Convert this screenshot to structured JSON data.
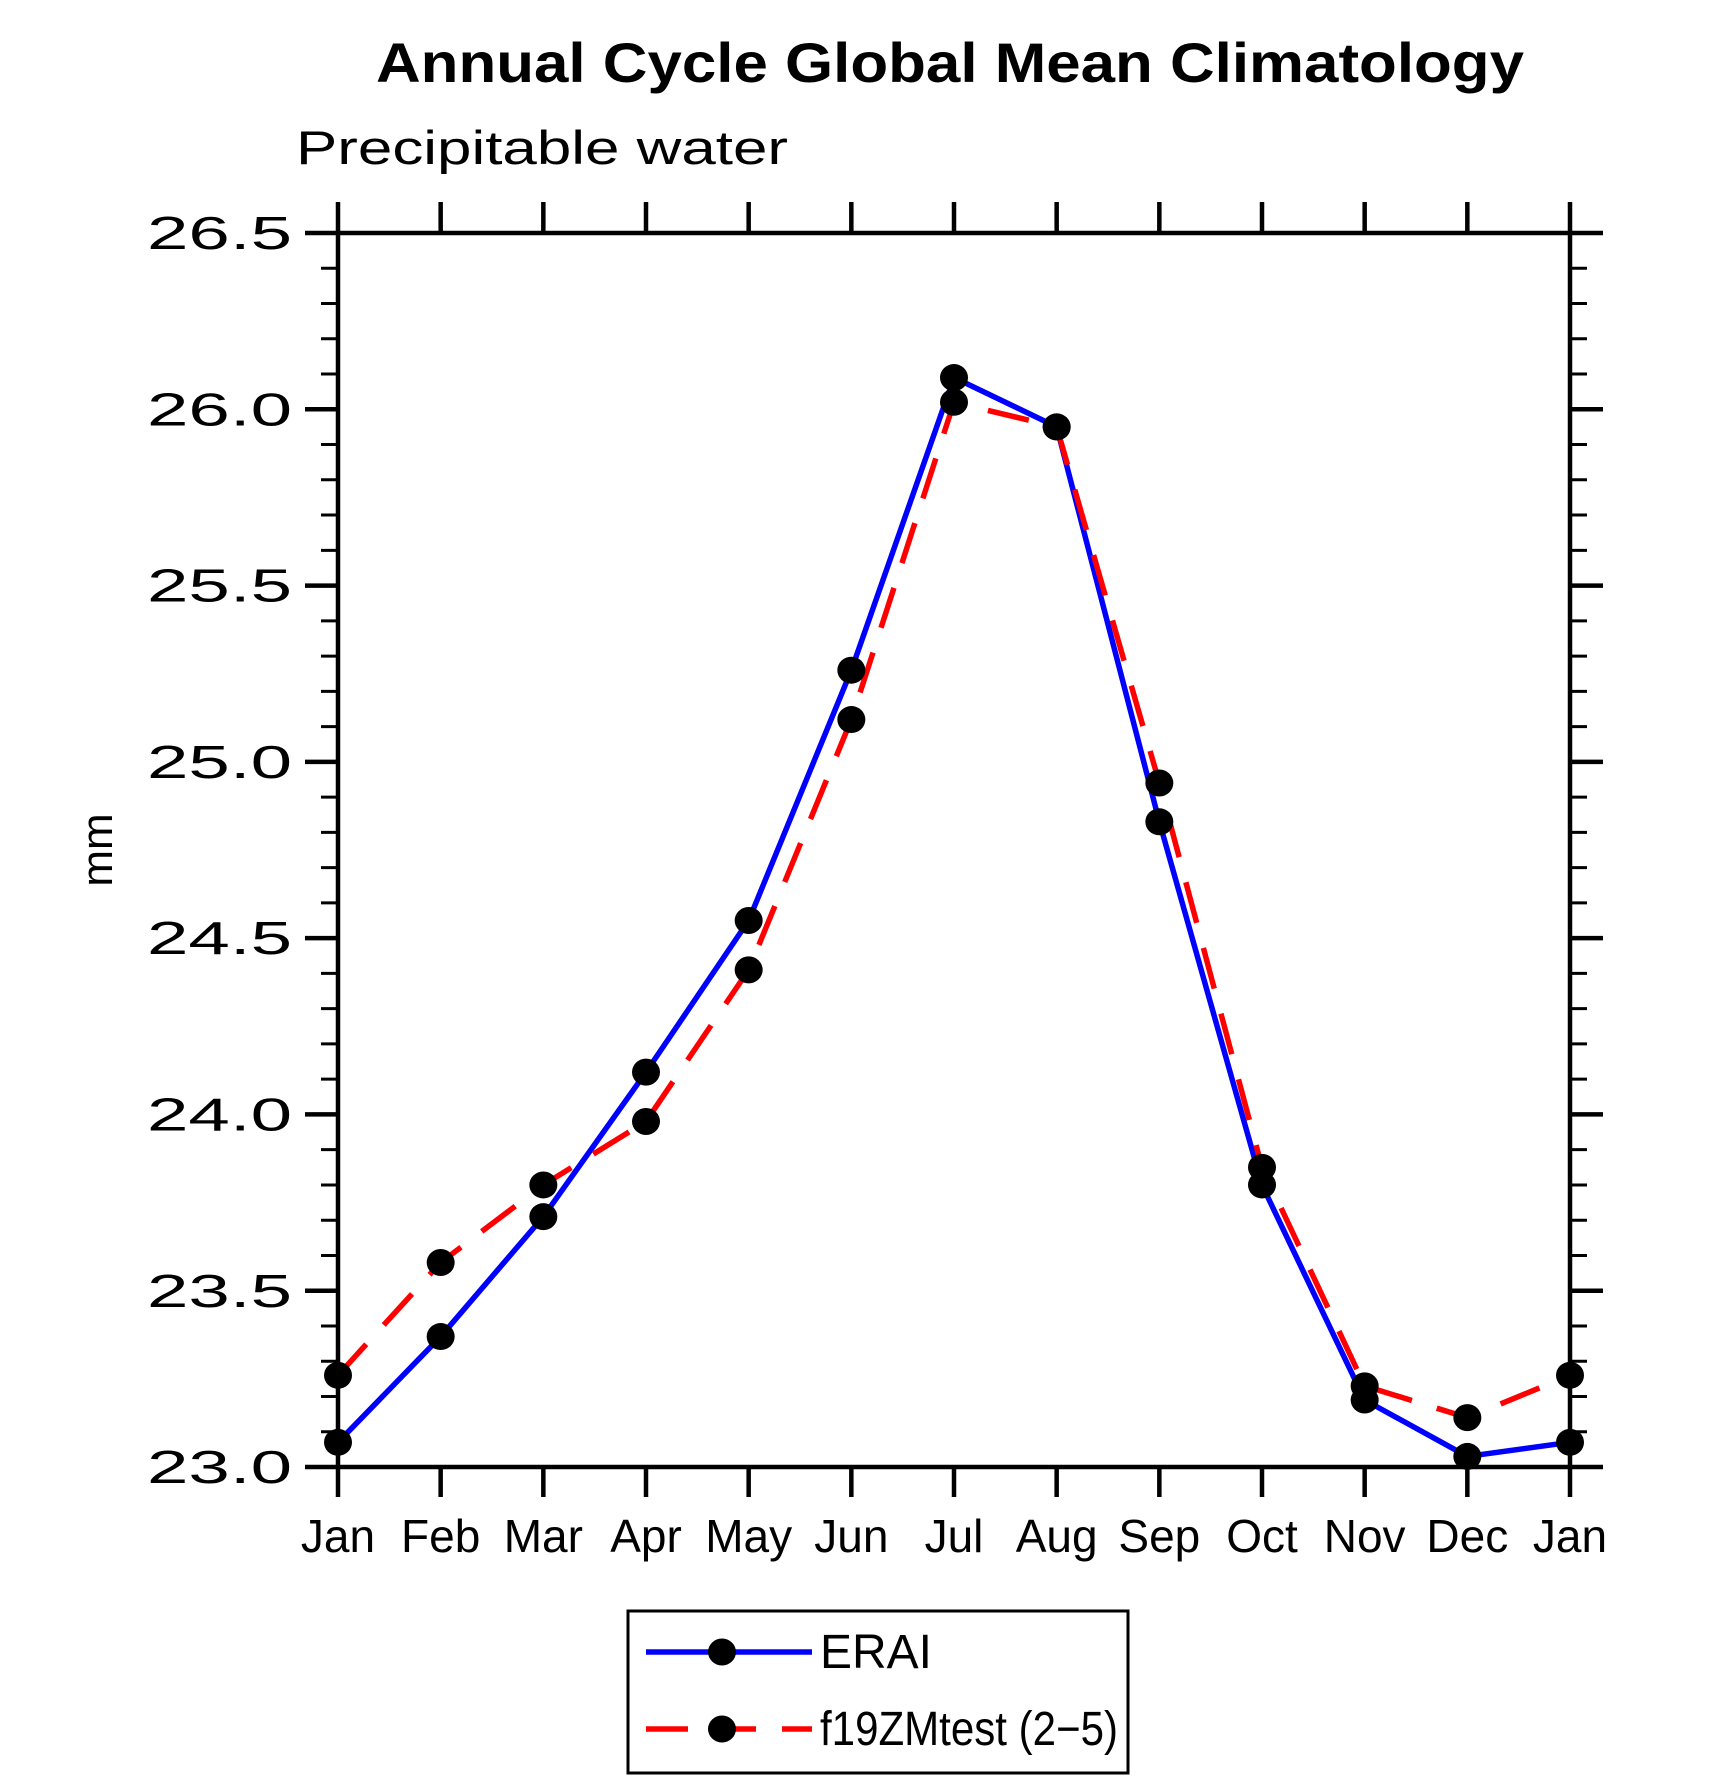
{
  "chart_data": {
    "type": "line",
    "title": "Annual Cycle Global Mean Climatology",
    "subtitle": "Precipitable water",
    "ylabel": "mm",
    "xlabel": "",
    "x_categories": [
      "Jan",
      "Feb",
      "Mar",
      "Apr",
      "May",
      "Jun",
      "Jul",
      "Aug",
      "Sep",
      "Oct",
      "Nov",
      "Dec",
      "Jan"
    ],
    "ylim": [
      23.0,
      26.5
    ],
    "ytick_major_step": 0.5,
    "ytick_minor_step": 0.1,
    "ytick_labels": [
      "23.0",
      "23.5",
      "24.0",
      "24.5",
      "25.0",
      "25.5",
      "26.0",
      "26.5"
    ],
    "grid": "off",
    "legend_position": "bottom-center",
    "series": [
      {
        "name": "ERAI",
        "color": "#0000ff",
        "line_style": "solid",
        "marker": "black-filled-circle",
        "values": [
          23.07,
          23.37,
          23.71,
          24.12,
          24.55,
          25.26,
          26.09,
          25.95,
          24.83,
          23.8,
          23.19,
          23.03,
          23.07
        ]
      },
      {
        "name": "f19ZMtest (2−5)",
        "color": "#ff0000",
        "line_style": "dashed",
        "marker": "black-filled-circle",
        "values": [
          23.26,
          23.58,
          23.8,
          23.98,
          24.41,
          25.12,
          26.02,
          25.95,
          24.94,
          23.85,
          23.23,
          23.14,
          23.26
        ]
      }
    ],
    "marker_color": "#000000",
    "axis_color": "#000000"
  }
}
